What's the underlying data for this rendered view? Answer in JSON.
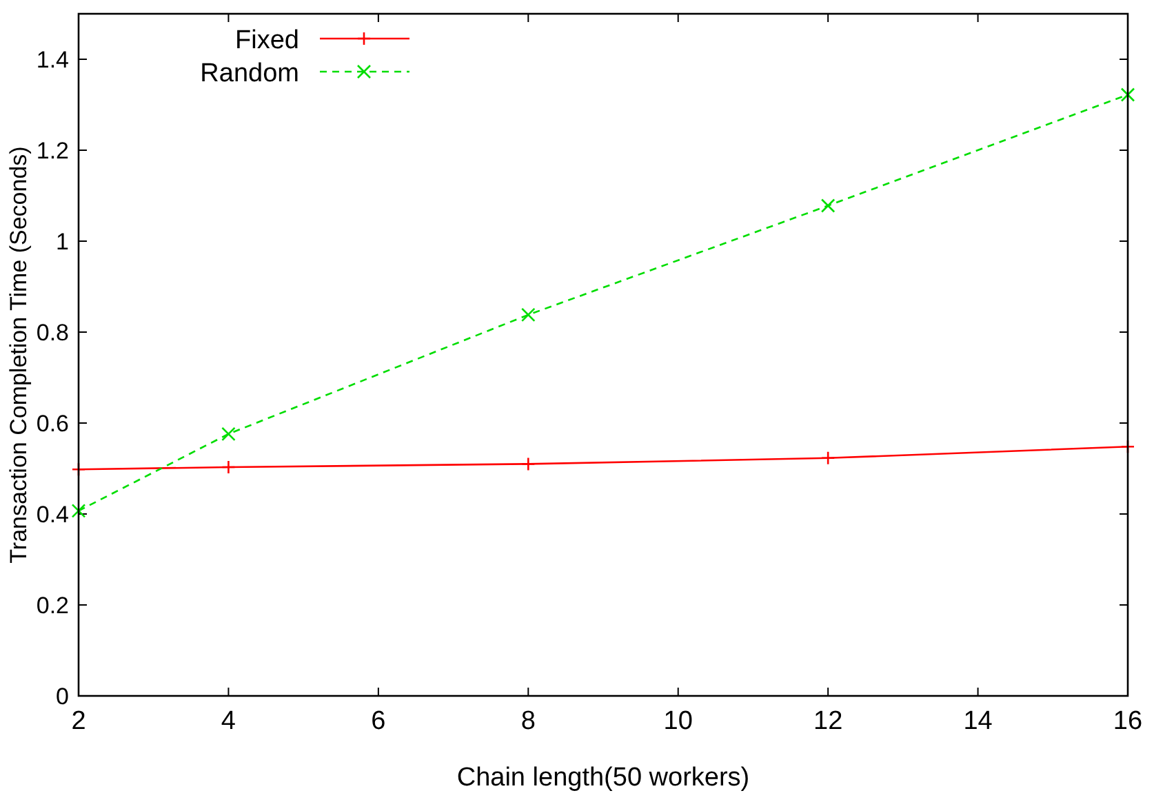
{
  "chart_data": {
    "type": "line",
    "xlabel": "Chain length(50 workers)",
    "ylabel": "Transaction Completion Time (Seconds)",
    "x": [
      2,
      4,
      8,
      12,
      16
    ],
    "series": [
      {
        "name": "Fixed",
        "color": "#ff0000",
        "values": [
          0.498,
          0.503,
          0.51,
          0.523,
          0.548
        ],
        "marker": "plus",
        "line_style": "solid"
      },
      {
        "name": "Random",
        "color": "#00dd00",
        "values": [
          0.407,
          0.576,
          0.838,
          1.078,
          1.322
        ],
        "marker": "cross",
        "line_style": "dashed"
      }
    ],
    "xlim": [
      2,
      16
    ],
    "xticks": [
      2,
      4,
      6,
      8,
      10,
      12,
      14,
      16
    ],
    "ylim": [
      0,
      1.5
    ],
    "yticks": [
      0,
      0.2,
      0.4,
      0.6,
      0.8,
      1,
      1.2,
      1.4
    ],
    "grid": false,
    "legend": "top left"
  }
}
